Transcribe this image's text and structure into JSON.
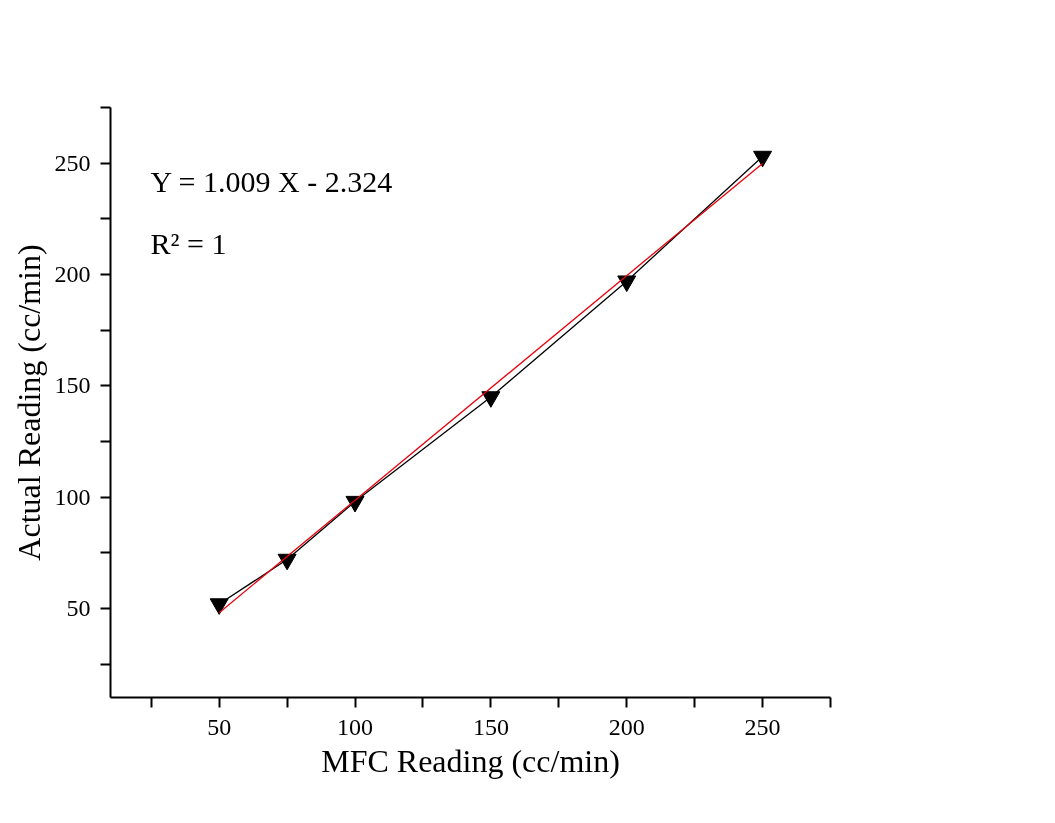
{
  "chart_data": {
    "type": "line",
    "xlabel": "MFC Reading (cc/min)",
    "ylabel": "Actual Reading (cc/min)",
    "x": [
      50,
      75,
      100,
      150,
      200,
      250
    ],
    "series": [
      {
        "color": "#000000",
        "values": [
          52,
          72,
          98,
          145,
          197,
          253
        ],
        "marker": "triangle"
      },
      {
        "type": "line",
        "color": "#e8000b",
        "x": [
          50,
          250
        ],
        "values": [
          48.1,
          249.9
        ],
        "marker": "none"
      }
    ],
    "xlim": [
      10,
      275
    ],
    "ylim": [
      10,
      275
    ],
    "xticks": [
      {
        "value": 25,
        "label": null
      },
      50,
      {
        "value": 75,
        "label": null
      },
      100,
      {
        "value": 125,
        "label": null
      },
      150,
      {
        "value": 175,
        "label": null
      },
      200,
      {
        "value": 225,
        "label": null
      },
      250,
      {
        "value": 275,
        "label": null
      }
    ],
    "yticks": [
      {
        "value": 25,
        "label": null
      },
      50,
      {
        "value": 75,
        "label": null
      },
      100,
      {
        "value": 125,
        "label": null
      },
      150,
      {
        "value": 175,
        "label": null
      },
      200,
      {
        "value": 225,
        "label": null
      },
      250,
      {
        "value": 275,
        "label": null
      }
    ],
    "annotations": [
      "Y = 1.009 X - 2.324",
      "R² = 1"
    ],
    "grid": false
  }
}
